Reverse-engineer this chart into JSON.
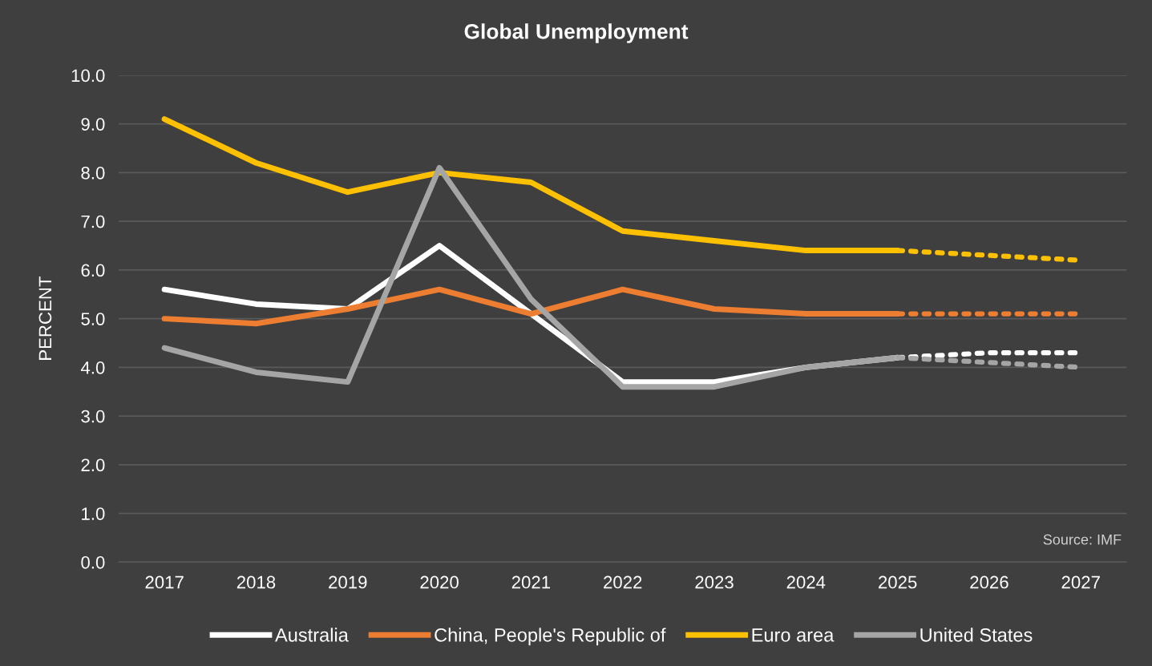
{
  "chart_data": {
    "type": "line",
    "title": "Global Unemployment",
    "ylabel": "PERCENT",
    "categories": [
      "2017",
      "2018",
      "2019",
      "2020",
      "2021",
      "2022",
      "2023",
      "2024",
      "2025",
      "2026",
      "2027"
    ],
    "series": [
      {
        "name": "Australia",
        "color": "#ffffff",
        "line_style": "solid",
        "values": [
          5.6,
          5.3,
          5.2,
          6.5,
          5.1,
          3.7,
          3.7,
          4.0,
          4.2,
          null,
          null
        ]
      },
      {
        "name": "China, People's Republic of",
        "color": "#ed7d31",
        "line_style": "solid",
        "values": [
          5.0,
          4.9,
          5.2,
          5.6,
          5.1,
          5.6,
          5.2,
          5.1,
          5.1,
          null,
          null
        ]
      },
      {
        "name": "Euro area",
        "color": "#ffc000",
        "line_style": "solid",
        "values": [
          9.1,
          8.2,
          7.6,
          8.0,
          7.8,
          6.8,
          6.6,
          6.4,
          6.4,
          null,
          null
        ]
      },
      {
        "name": "United States",
        "color": "#a5a5a5",
        "line_style": "solid",
        "values": [
          4.4,
          3.9,
          3.7,
          8.1,
          5.4,
          3.6,
          3.6,
          4.0,
          4.2,
          null,
          null
        ]
      },
      {
        "color": "#ffffff",
        "line_style": "dotted",
        "values": [
          null,
          null,
          null,
          null,
          null,
          null,
          null,
          null,
          4.2,
          4.3,
          4.3
        ]
      },
      {
        "color": "#ed7d31",
        "line_style": "dotted",
        "values": [
          null,
          null,
          null,
          null,
          null,
          null,
          null,
          null,
          5.1,
          5.1,
          5.1
        ]
      },
      {
        "color": "#ffc000",
        "line_style": "dotted",
        "values": [
          null,
          null,
          null,
          null,
          null,
          null,
          null,
          null,
          6.4,
          6.3,
          6.2
        ]
      },
      {
        "color": "#a5a5a5",
        "line_style": "dotted",
        "values": [
          null,
          null,
          null,
          null,
          null,
          null,
          null,
          null,
          4.2,
          4.1,
          4.0
        ]
      }
    ],
    "ylim": [
      0,
      10
    ],
    "yticks": [
      {
        "value": 0,
        "label": "0.0"
      },
      {
        "value": 1,
        "label": "1.0"
      },
      {
        "value": 2,
        "label": "2.0"
      },
      {
        "value": 3,
        "label": "3.0"
      },
      {
        "value": 4,
        "label": "4.0"
      },
      {
        "value": 5,
        "label": "5.0"
      },
      {
        "value": 6,
        "label": "6.0"
      },
      {
        "value": 7,
        "label": "7.0"
      },
      {
        "value": 8,
        "label": "8.0"
      },
      {
        "value": 9,
        "label": "9.0"
      },
      {
        "value": 10,
        "label": "10.0"
      }
    ],
    "grid": "y",
    "legend": "bottom",
    "marker": "none",
    "annotations": [
      "Source: IMF"
    ]
  }
}
